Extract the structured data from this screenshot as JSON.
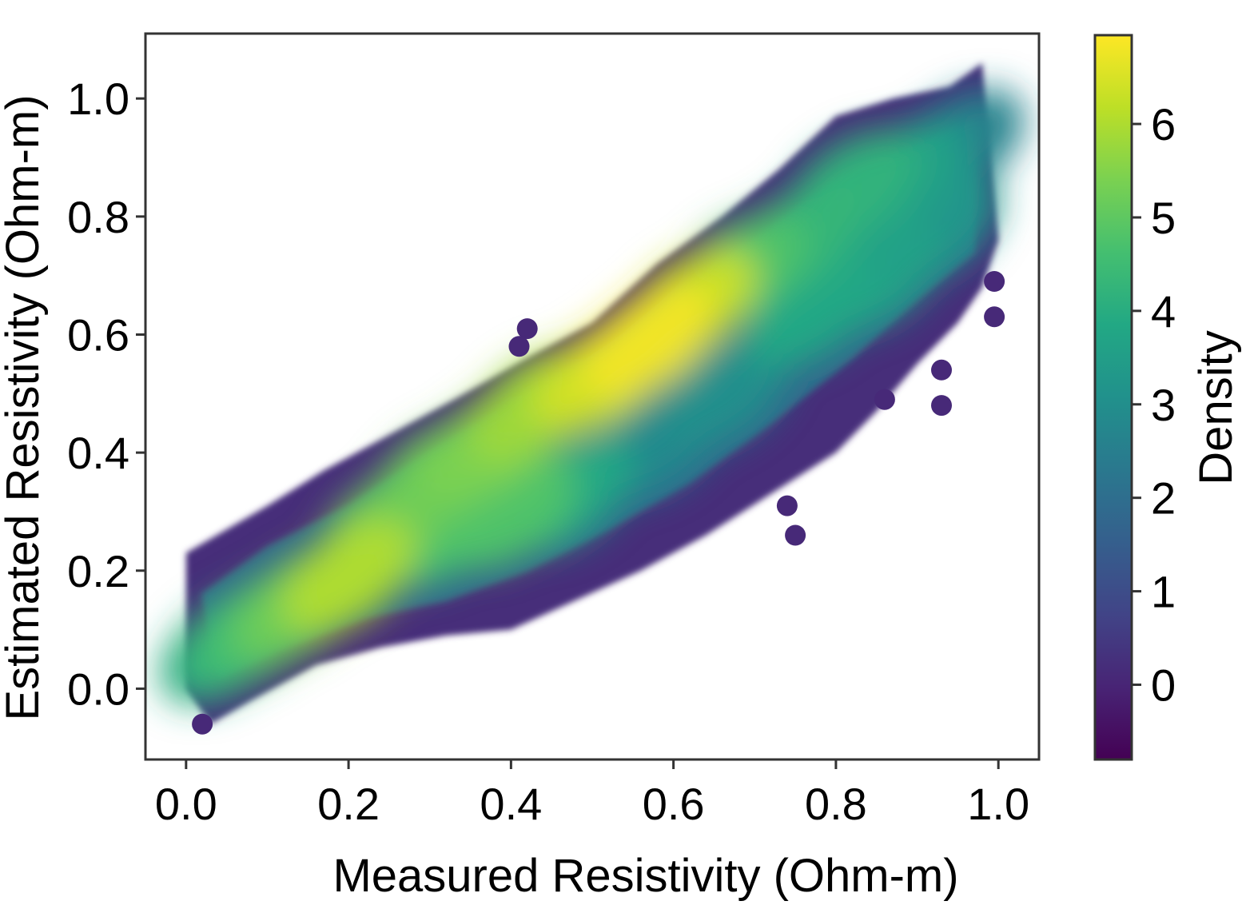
{
  "chart_data": {
    "type": "scatter",
    "subtype": "density-colored scatter",
    "title": "",
    "xlabel": "Measured Resistivity (Ohm-m)",
    "ylabel": "Estimated Resistivity (Ohm-m)",
    "xlim": [
      -0.05,
      1.05
    ],
    "ylim": [
      -0.12,
      1.11
    ],
    "xticks": [
      0.0,
      0.2,
      0.4,
      0.6,
      0.8,
      1.0
    ],
    "xtick_labels": [
      "0.0",
      "0.2",
      "0.4",
      "0.6",
      "0.8",
      "1.0"
    ],
    "yticks": [
      0.0,
      0.2,
      0.4,
      0.6,
      0.8,
      1.0
    ],
    "ytick_labels": [
      "0.0",
      "0.2",
      "0.4",
      "0.6",
      "0.8",
      "1.0"
    ],
    "grid": false,
    "colorbar": {
      "label": "Density",
      "colormap": "viridis",
      "range": [
        -0.8,
        6.95
      ],
      "ticks": [
        0,
        1,
        2,
        3,
        4,
        5,
        6
      ],
      "tick_labels": [
        "0",
        "1",
        "2",
        "3",
        "4",
        "5",
        "6"
      ]
    },
    "density_hotspots": [
      {
        "x": 0.57,
        "y": 0.59,
        "density": 6.8
      },
      {
        "x": 0.62,
        "y": 0.65,
        "density": 6.3
      },
      {
        "x": 0.51,
        "y": 0.53,
        "density": 6.4
      },
      {
        "x": 0.43,
        "y": 0.48,
        "density": 5.8
      },
      {
        "x": 0.37,
        "y": 0.41,
        "density": 5.4
      },
      {
        "x": 0.31,
        "y": 0.36,
        "density": 5.2
      },
      {
        "x": 0.25,
        "y": 0.28,
        "density": 5.2
      },
      {
        "x": 0.2,
        "y": 0.19,
        "density": 6.0
      },
      {
        "x": 0.14,
        "y": 0.14,
        "density": 5.2
      },
      {
        "x": 0.09,
        "y": 0.1,
        "density": 4.6
      },
      {
        "x": 0.05,
        "y": 0.07,
        "density": 4.0
      },
      {
        "x": 0.4,
        "y": 0.3,
        "density": 4.8
      },
      {
        "x": 0.32,
        "y": 0.27,
        "density": 4.6
      },
      {
        "x": 0.47,
        "y": 0.33,
        "density": 3.8
      },
      {
        "x": 0.68,
        "y": 0.71,
        "density": 4.8
      },
      {
        "x": 0.75,
        "y": 0.76,
        "density": 4.3
      },
      {
        "x": 0.82,
        "y": 0.85,
        "density": 4.2
      },
      {
        "x": 0.88,
        "y": 0.87,
        "density": 3.6
      },
      {
        "x": 0.77,
        "y": 0.64,
        "density": 3.8
      },
      {
        "x": 0.85,
        "y": 0.7,
        "density": 3.6
      },
      {
        "x": 0.92,
        "y": 0.78,
        "density": 3.2
      },
      {
        "x": 0.66,
        "y": 0.5,
        "density": 3.0
      },
      {
        "x": 0.58,
        "y": 0.42,
        "density": 2.8
      },
      {
        "x": 0.95,
        "y": 0.92,
        "density": 2.6
      }
    ],
    "point_cloud_extent": {
      "x": [
        0.0,
        1.0
      ],
      "y": [
        -0.06,
        1.06
      ]
    },
    "outliers": [
      {
        "x": 0.995,
        "y": 0.69
      },
      {
        "x": 0.995,
        "y": 0.63
      },
      {
        "x": 0.93,
        "y": 0.54
      },
      {
        "x": 0.93,
        "y": 0.48
      },
      {
        "x": 0.86,
        "y": 0.49
      },
      {
        "x": 0.74,
        "y": 0.31
      },
      {
        "x": 0.75,
        "y": 0.26
      },
      {
        "x": 0.42,
        "y": 0.61
      },
      {
        "x": 0.41,
        "y": 0.58
      },
      {
        "x": 0.02,
        "y": -0.06
      }
    ]
  }
}
